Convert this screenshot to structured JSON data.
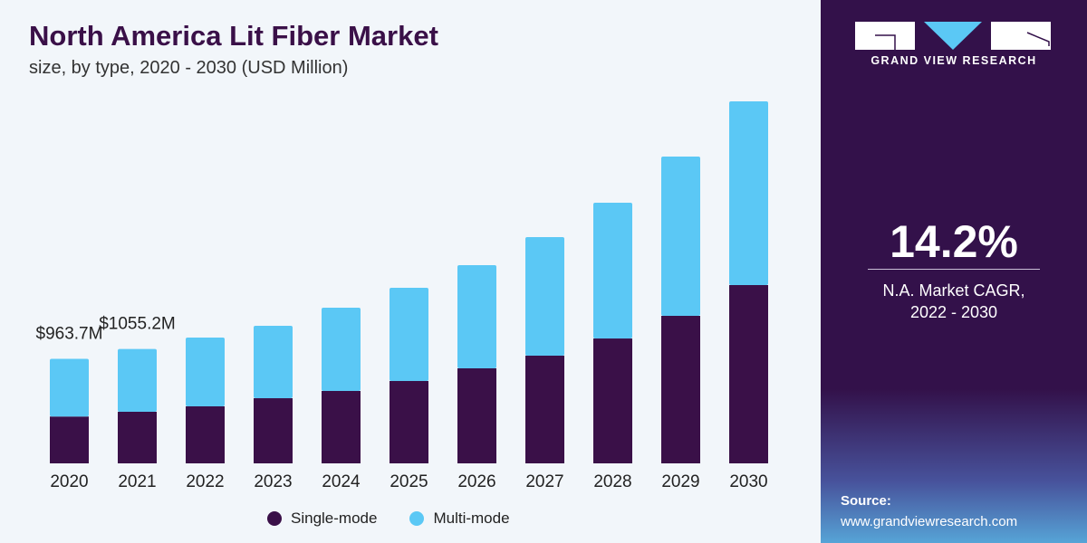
{
  "chart_data": {
    "type": "bar",
    "stacked": true,
    "title": "North America Lit Fiber Market",
    "subtitle": "size, by type, 2020 - 2030 (USD Million)",
    "categories": [
      "2020",
      "2021",
      "2022",
      "2023",
      "2024",
      "2025",
      "2026",
      "2027",
      "2028",
      "2029",
      "2030"
    ],
    "series": [
      {
        "name": "Single-mode",
        "color": "#3a1048",
        "values": [
          432,
          476,
          526,
          601,
          668,
          760,
          877,
          994,
          1152,
          1361,
          1645
        ]
      },
      {
        "name": "Multi-mode",
        "color": "#5bc8f5",
        "values": [
          532,
          579,
          635,
          668,
          768,
          860,
          952,
          1094,
          1253,
          1470,
          1695
        ]
      }
    ],
    "data_labels": [
      {
        "category": "2020",
        "text": "$963.7M"
      },
      {
        "category": "2021",
        "text": "$1055.2M"
      }
    ],
    "ylim": [
      0,
      3500
    ],
    "grid": false,
    "legend": "bottom"
  },
  "panel": {
    "brand": "GRAND VIEW RESEARCH",
    "cagr": "14.2%",
    "cagr_label_1": "N.A. Market CAGR,",
    "cagr_label_2": "2022 - 2030",
    "source_label": "Source:",
    "source_url": "www.grandviewresearch.com"
  }
}
